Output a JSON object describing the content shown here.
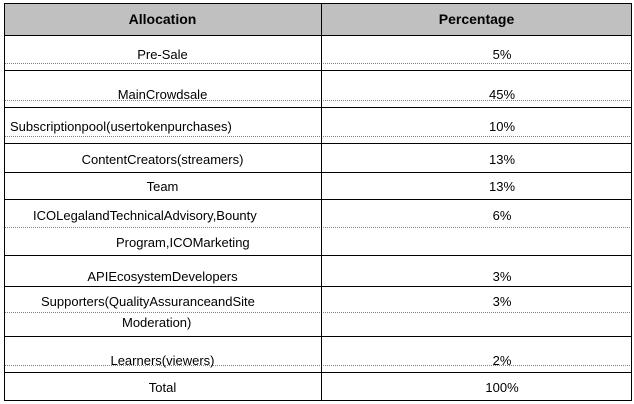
{
  "table": {
    "headers": {
      "allocation": "Allocation",
      "percentage": "Percentage"
    },
    "rows": [
      {
        "allocation": "Pre-Sale",
        "percentage": "5%"
      },
      {
        "allocation": "MainCrowdsale",
        "percentage": "45%"
      },
      {
        "allocation": "Subscriptionpool(usertokenpurchases)",
        "percentage": "10%"
      },
      {
        "allocation": "ContentCreators(streamers)",
        "percentage": "13%"
      },
      {
        "allocation": "Team",
        "percentage": "13%"
      },
      {
        "allocation_line1": "ICOLegalandTechnicalAdvisory,Bounty",
        "allocation_line2": "Program,ICOMarketing",
        "percentage": "6%"
      },
      {
        "allocation": "APIEcosystemDevelopers",
        "percentage": "3%"
      },
      {
        "allocation_line1": "Supporters(QualityAssuranceandSite",
        "allocation_line2": "Moderation)",
        "percentage": "3%"
      },
      {
        "allocation": "Learners(viewers)",
        "percentage": "2%"
      }
    ],
    "total": {
      "allocation": "Total",
      "percentage": "100%"
    }
  }
}
